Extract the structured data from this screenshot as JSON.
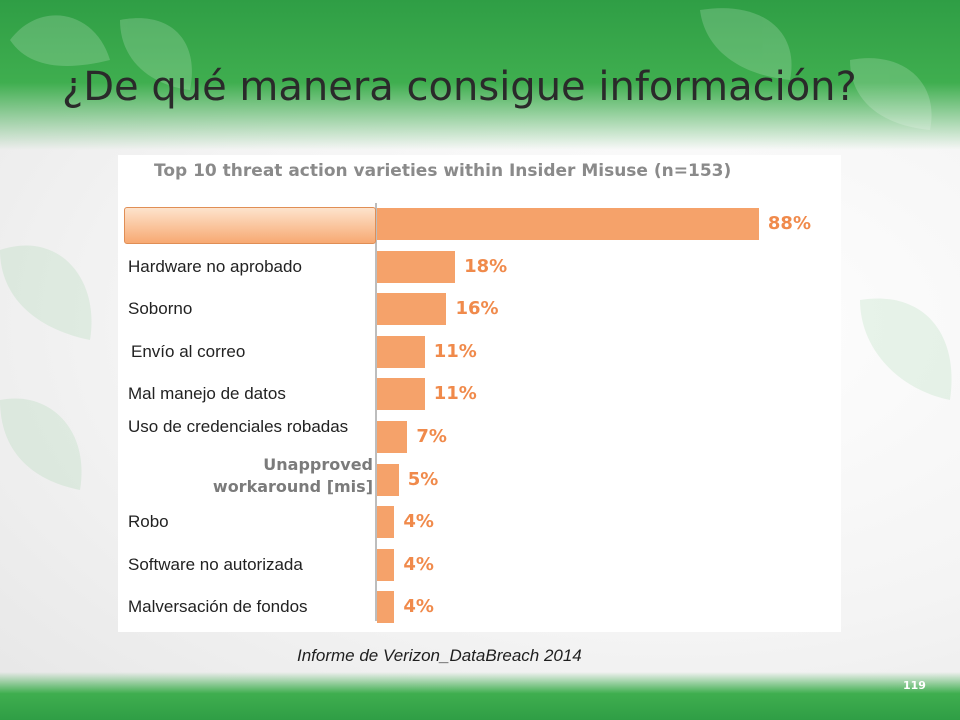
{
  "slide": {
    "title": "¿De qué manera consigue información?",
    "source_note": "Informe de Verizon_DataBreach 2014",
    "page_number": "119"
  },
  "chart_data": {
    "type": "bar",
    "orientation": "horizontal",
    "title": "Top 10 threat action varieties within Insider Misuse (n=153)",
    "categories": [
      "",
      "Hardware no aprobado",
      "Soborno",
      "Envío al correo",
      "Mal manejo de datos",
      "Uso de credenciales robadas",
      "Unapproved workaround [mis]",
      "Robo",
      "Software no autorizada",
      "Malversación de fondos"
    ],
    "values": [
      88,
      18,
      16,
      11,
      11,
      7,
      5,
      4,
      4,
      4
    ],
    "value_labels": [
      "88%",
      "18%",
      "16%",
      "11%",
      "11%",
      "7%",
      "5%",
      "4%",
      "4%",
      "4%"
    ],
    "unit": "%",
    "xlim": [
      0,
      100
    ],
    "grid": false,
    "bar_color": "#f5a26a",
    "label_color": "#f08a4b"
  }
}
